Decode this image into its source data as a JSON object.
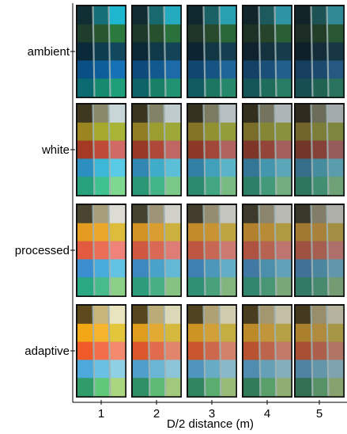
{
  "figure": {
    "row_labels": [
      "ambient",
      "white",
      "processed",
      "adaptive"
    ],
    "column_labels": [
      "1",
      "2",
      "3",
      "4",
      "5"
    ],
    "x_axis_label": "D/2 distance (m)"
  },
  "panels": [
    {
      "condition": "ambient",
      "columns": [
        [
          "#0f2f35",
          "#1f3d2c",
          "#0a2a3a",
          "#0a4f86",
          "#0a6a70"
        ],
        [
          "#147076",
          "#27562f",
          "#0e3d4f",
          "#0e5e9c",
          "#158a6e"
        ],
        [
          "#1fb7cf",
          "#2a7a3d",
          "#11485e",
          "#1771b6",
          "#1f9f79"
        ]
      ]
    },
    {
      "condition": "white",
      "columns": [
        [
          "#3e3820",
          "#9a8520",
          "#a53a24",
          "#2c8fbf",
          "#27a27a"
        ],
        [
          "#8a8a6a",
          "#a6a82c",
          "#bf4a38",
          "#3bb7d8",
          "#3fc290"
        ],
        [
          "#c9d6d8",
          "#a8b435",
          "#cf6a65",
          "#59cbe6",
          "#7fd88f"
        ]
      ]
    },
    {
      "condition": "processed",
      "columns": [
        [
          "#4a4530",
          "#e39c1f",
          "#e25a3f",
          "#3b8fd0",
          "#2aa882"
        ],
        [
          "#a89e7a",
          "#eaa72a",
          "#ea6d55",
          "#47acd9",
          "#48bb8a"
        ],
        [
          "#dcdcd4",
          "#dcbc3a",
          "#ef8279",
          "#63c3e5",
          "#8ccf87"
        ]
      ]
    },
    {
      "condition": "adaptive",
      "columns": [
        [
          "#5c4a1c",
          "#f2a716",
          "#f05a28",
          "#4da8dc",
          "#2f9c6a"
        ],
        [
          "#c7b57a",
          "#f5b52e",
          "#f36f4c",
          "#6ac0e2",
          "#5fc879"
        ],
        [
          "#e8e4c0",
          "#e4c63a",
          "#f38a6e",
          "#8fd0e4",
          "#a9d67e"
        ]
      ]
    }
  ],
  "colors": {
    "frame": "#111111",
    "tape": "#9fb3b5",
    "background": "#ffffff"
  }
}
